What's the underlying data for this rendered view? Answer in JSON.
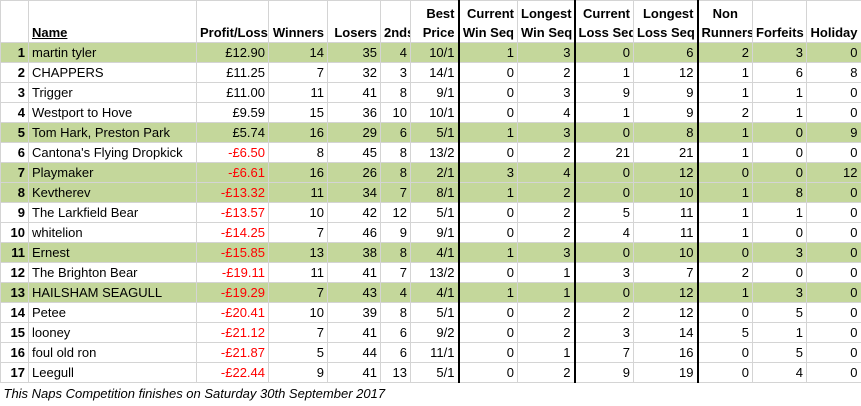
{
  "table": {
    "header": [
      [],
      [
        "Name"
      ],
      [
        "Profit/Loss"
      ],
      [
        "Winners"
      ],
      [
        "Losers"
      ],
      [
        "2nds"
      ],
      [
        "Best",
        "Price"
      ],
      [
        "Current",
        "Win Seq"
      ],
      [
        "Longest",
        "Win Seq"
      ],
      [
        "Current",
        "Loss Seq"
      ],
      [
        "Longest",
        "Loss Seq"
      ],
      [
        "Non",
        "Runners"
      ],
      [
        "Forfeits"
      ],
      [
        "Holiday"
      ]
    ],
    "rows": [
      {
        "highlight": true,
        "cells": [
          1,
          "martin tyler",
          "£12.90",
          14,
          35,
          4,
          "10/1",
          1,
          3,
          0,
          6,
          2,
          3,
          0
        ]
      },
      {
        "highlight": false,
        "cells": [
          2,
          "CHAPPERS",
          "£11.25",
          7,
          32,
          3,
          "14/1",
          0,
          2,
          1,
          12,
          1,
          6,
          8
        ]
      },
      {
        "highlight": false,
        "cells": [
          3,
          "Trigger",
          "£11.00",
          11,
          41,
          8,
          "9/1",
          0,
          3,
          9,
          9,
          1,
          1,
          0
        ]
      },
      {
        "highlight": false,
        "cells": [
          4,
          "Westport to Hove",
          "£9.59",
          15,
          36,
          10,
          "10/1",
          0,
          4,
          1,
          9,
          2,
          1,
          0
        ]
      },
      {
        "highlight": true,
        "cells": [
          5,
          "Tom Hark, Preston Park",
          "£5.74",
          16,
          29,
          6,
          "5/1",
          1,
          3,
          0,
          8,
          1,
          0,
          9
        ]
      },
      {
        "highlight": false,
        "cells": [
          6,
          "Cantona's Flying Dropkick",
          "-£6.50",
          8,
          45,
          8,
          "13/2",
          0,
          2,
          21,
          21,
          1,
          0,
          0
        ]
      },
      {
        "highlight": true,
        "cells": [
          7,
          "Playmaker",
          "-£6.61",
          16,
          26,
          8,
          "2/1",
          3,
          4,
          0,
          12,
          0,
          0,
          12
        ]
      },
      {
        "highlight": true,
        "cells": [
          8,
          "Kevtherev",
          "-£13.32",
          11,
          34,
          7,
          "8/1",
          1,
          2,
          0,
          10,
          1,
          8,
          0
        ]
      },
      {
        "highlight": false,
        "cells": [
          9,
          "The Larkfield Bear",
          "-£13.57",
          10,
          42,
          12,
          "5/1",
          0,
          2,
          5,
          11,
          1,
          1,
          0
        ]
      },
      {
        "highlight": false,
        "cells": [
          10,
          "whitelion",
          "-£14.25",
          7,
          46,
          9,
          "9/1",
          0,
          2,
          4,
          11,
          1,
          0,
          0
        ]
      },
      {
        "highlight": true,
        "cells": [
          11,
          "Ernest",
          "-£15.85",
          13,
          38,
          8,
          "4/1",
          1,
          3,
          0,
          10,
          0,
          3,
          0
        ]
      },
      {
        "highlight": false,
        "cells": [
          12,
          "The Brighton Bear",
          "-£19.11",
          11,
          41,
          7,
          "13/2",
          0,
          1,
          3,
          7,
          2,
          0,
          0
        ]
      },
      {
        "highlight": true,
        "cells": [
          13,
          "HAILSHAM SEAGULL",
          "-£19.29",
          7,
          43,
          4,
          "4/1",
          1,
          1,
          0,
          12,
          1,
          3,
          0
        ]
      },
      {
        "highlight": false,
        "cells": [
          14,
          "Petee",
          "-£20.41",
          10,
          39,
          8,
          "5/1",
          0,
          2,
          2,
          12,
          0,
          5,
          0
        ]
      },
      {
        "highlight": false,
        "cells": [
          15,
          "looney",
          "-£21.12",
          7,
          41,
          6,
          "9/2",
          0,
          2,
          3,
          14,
          5,
          1,
          0
        ]
      },
      {
        "highlight": false,
        "cells": [
          16,
          "foul old ron",
          "-£21.87",
          5,
          44,
          6,
          "11/1",
          0,
          1,
          7,
          16,
          0,
          5,
          0
        ]
      },
      {
        "highlight": false,
        "cells": [
          17,
          "Leegull",
          "-£22.44",
          9,
          41,
          13,
          "5/1",
          0,
          2,
          9,
          19,
          0,
          4,
          0
        ]
      }
    ],
    "footer": "This Naps Competition finishes on Saturday 30th September 2017"
  }
}
